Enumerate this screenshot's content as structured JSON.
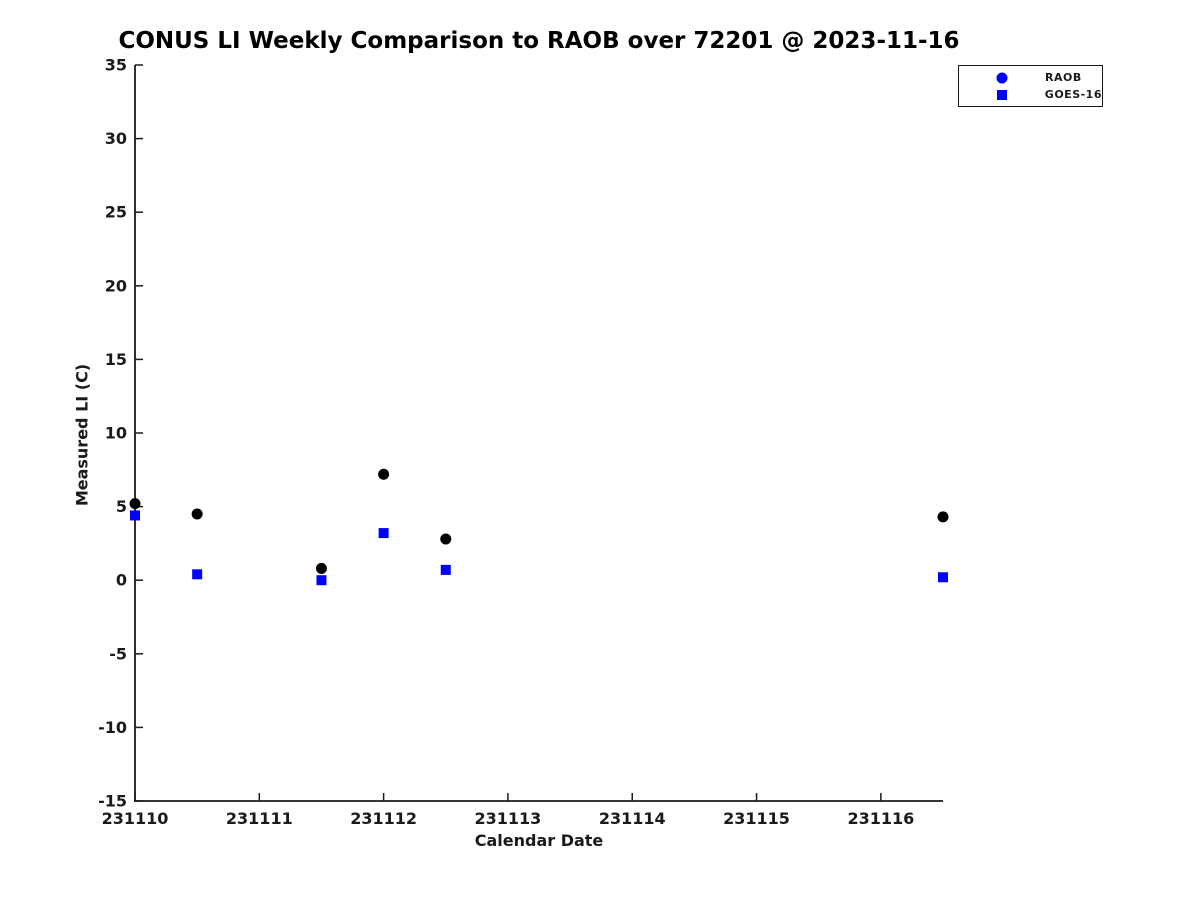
{
  "figure": {
    "background": "#ffffff",
    "axis_color": "#1a1a1a"
  },
  "legend": {
    "position": "top-right",
    "entries": [
      {
        "label": "RAOB",
        "marker": "circle",
        "color": "#0000ff"
      },
      {
        "label": "GOES-16",
        "marker": "square",
        "color": "#0000ff"
      }
    ]
  },
  "chart_data": {
    "type": "scatter",
    "title": "CONUS LI Weekly Comparison to RAOB over 72201 @ 2023-11-16",
    "xlabel": "Calendar Date",
    "ylabel": "Measured LI (C)",
    "xlim": [
      231110,
      231116.5
    ],
    "ylim": [
      -15,
      35
    ],
    "x_ticks": [
      231110,
      231111,
      231112,
      231113,
      231114,
      231115,
      231116
    ],
    "y_ticks": [
      -15,
      -10,
      -5,
      0,
      5,
      10,
      15,
      20,
      25,
      30,
      35
    ],
    "grid": false,
    "legend_position": "top-right",
    "series": [
      {
        "name": "RAOB",
        "marker": "circle",
        "marker_color": "#000000",
        "points": [
          [
            231110.0,
            5.2
          ],
          [
            231110.5,
            4.5
          ],
          [
            231111.5,
            0.8
          ],
          [
            231112.0,
            7.2
          ],
          [
            231112.5,
            2.8
          ],
          [
            231116.5,
            4.3
          ]
        ]
      },
      {
        "name": "GOES-16",
        "marker": "square",
        "marker_color": "#0000ff",
        "points": [
          [
            231110.0,
            4.4
          ],
          [
            231110.5,
            0.4
          ],
          [
            231111.5,
            0.0
          ],
          [
            231112.0,
            3.2
          ],
          [
            231112.5,
            0.7
          ],
          [
            231116.5,
            0.2
          ]
        ]
      }
    ]
  }
}
